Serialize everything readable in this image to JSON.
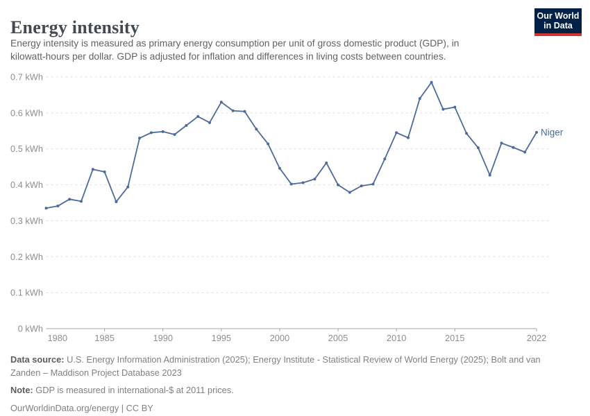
{
  "header": {
    "title": "Energy intensity",
    "subtitle_lines": [
      "Energy intensity is measured as primary energy consumption per unit of gross domestic product (GDP), in",
      "kilowatt-hours per dollar. GDP is adjusted for inflation and differences in living costs between countries."
    ],
    "logo": {
      "line1": "Our World",
      "line2": "in Data",
      "bg_color": "#002147",
      "accent_color": "#cf3433"
    }
  },
  "chart_data": {
    "type": "line",
    "title": "Energy intensity",
    "entity_label": "Niger",
    "unit": "kWh",
    "x": [
      1980,
      1981,
      1982,
      1983,
      1984,
      1985,
      1986,
      1987,
      1988,
      1989,
      1990,
      1991,
      1992,
      1993,
      1994,
      1995,
      1996,
      1997,
      1998,
      1999,
      2000,
      2001,
      2002,
      2003,
      2004,
      2005,
      2006,
      2007,
      2008,
      2009,
      2010,
      2011,
      2012,
      2013,
      2014,
      2015,
      2016,
      2017,
      2018,
      2019,
      2020,
      2021,
      2022
    ],
    "series": [
      {
        "name": "Niger",
        "color": "#4c6a9c",
        "values": [
          0.335,
          0.341,
          0.36,
          0.354,
          0.443,
          0.436,
          0.353,
          0.394,
          0.53,
          0.545,
          0.548,
          0.54,
          0.565,
          0.59,
          0.573,
          0.63,
          0.606,
          0.604,
          0.555,
          0.514,
          0.446,
          0.402,
          0.406,
          0.416,
          0.461,
          0.4,
          0.379,
          0.397,
          0.402,
          0.472,
          0.545,
          0.531,
          0.64,
          0.685,
          0.61,
          0.616,
          0.543,
          0.503,
          0.427,
          0.516,
          0.504,
          0.491,
          0.546
        ]
      }
    ],
    "xlabel": "",
    "ylabel": "",
    "ylim": [
      0,
      0.7
    ],
    "yticks": [
      0,
      0.1,
      0.2,
      0.3,
      0.4,
      0.5,
      0.6,
      0.7
    ],
    "ytick_labels": [
      "0 kWh",
      "0.1 kWh",
      "0.2 kWh",
      "0.3 kWh",
      "0.4 kWh",
      "0.5 kWh",
      "0.6 kWh",
      "0.7 kWh"
    ],
    "xticks": [
      1980,
      1985,
      1990,
      1995,
      2000,
      2005,
      2010,
      2015,
      2022
    ],
    "grid": "horizontal-dashed",
    "legend_position": "end-of-line-label",
    "colors": {
      "grid": "#dedede",
      "axis": "#a5a5a5",
      "tick_text": "#8e8e8e"
    }
  },
  "footer": {
    "source_label": "Data source:",
    "source_line1": "U.S. Energy Information Administration (2025); Energy Institute - Statistical Review of World Energy (2025); Bolt and van",
    "source_line2": "Zanden – Maddison Project Database 2023",
    "note_label": "Note:",
    "note_text": "GDP is measured in international-$ at 2011 prices.",
    "license_text": "OurWorldinData.org/energy | CC BY"
  }
}
